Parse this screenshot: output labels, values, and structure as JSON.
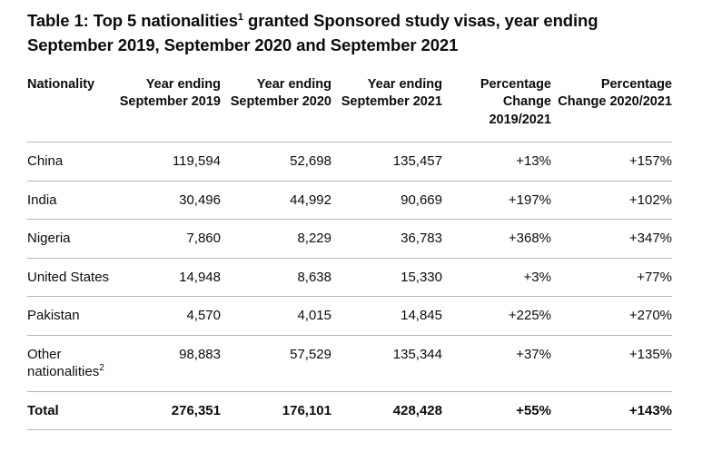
{
  "colors": {
    "text": "#0b0c0c",
    "border": "#b1b4b6",
    "background": "#ffffff"
  },
  "table": {
    "title": {
      "prefix": "Table 1: Top 5 nationalities",
      "footnote_marker": "1",
      "suffix": " granted Sponsored study visas, year ending September 2019, September 2020 and September 2021"
    },
    "columns": [
      {
        "label": "Nationality",
        "align": "left"
      },
      {
        "label": "Year ending September 2019",
        "align": "right"
      },
      {
        "label": "Year ending September 2020",
        "align": "right"
      },
      {
        "label": "Year ending September 2021",
        "align": "right"
      },
      {
        "label": "Percentage Change 2019/2021",
        "align": "right"
      },
      {
        "label": "Percentage Change 2020/2021",
        "align": "right"
      }
    ],
    "rows": [
      {
        "nationality": "China",
        "footnote_marker": "",
        "values": [
          "119,594",
          "52,698",
          "135,457",
          "+13%",
          "+157%"
        ],
        "is_total": false
      },
      {
        "nationality": "India",
        "footnote_marker": "",
        "values": [
          "30,496",
          "44,992",
          "90,669",
          "+197%",
          "+102%"
        ],
        "is_total": false
      },
      {
        "nationality": "Nigeria",
        "footnote_marker": "",
        "values": [
          "7,860",
          "8,229",
          "36,783",
          "+368%",
          "+347%"
        ],
        "is_total": false
      },
      {
        "nationality": "United States",
        "footnote_marker": "",
        "values": [
          "14,948",
          "8,638",
          "15,330",
          "+3%",
          "+77%"
        ],
        "is_total": false
      },
      {
        "nationality": "Pakistan",
        "footnote_marker": "",
        "values": [
          "4,570",
          "4,015",
          "14,845",
          "+225%",
          "+270%"
        ],
        "is_total": false
      },
      {
        "nationality": "Other nationalities",
        "footnote_marker": "2",
        "values": [
          "98,883",
          "57,529",
          "135,344",
          "+37%",
          "+135%"
        ],
        "is_total": false
      },
      {
        "nationality": "Total",
        "footnote_marker": "",
        "values": [
          "276,351",
          "176,101",
          "428,428",
          "+55%",
          "+143%"
        ],
        "is_total": true
      }
    ]
  },
  "chart_data": {
    "type": "table",
    "title": "Table 1: Top 5 nationalities granted Sponsored study visas, year ending September 2019, September 2020 and September 2021",
    "columns": [
      "Nationality",
      "Year ending September 2019",
      "Year ending September 2020",
      "Year ending September 2021",
      "Percentage Change 2019/2021",
      "Percentage Change 2020/2021"
    ],
    "rows": [
      [
        "China",
        119594,
        52698,
        135457,
        "+13%",
        "+157%"
      ],
      [
        "India",
        30496,
        44992,
        90669,
        "+197%",
        "+102%"
      ],
      [
        "Nigeria",
        7860,
        8229,
        36783,
        "+368%",
        "+347%"
      ],
      [
        "United States",
        14948,
        8638,
        15330,
        "+3%",
        "+77%"
      ],
      [
        "Pakistan",
        4570,
        4015,
        14845,
        "+225%",
        "+270%"
      ],
      [
        "Other nationalities",
        98883,
        57529,
        135344,
        "+37%",
        "+135%"
      ],
      [
        "Total",
        276351,
        176101,
        428428,
        "+55%",
        "+143%"
      ]
    ]
  }
}
